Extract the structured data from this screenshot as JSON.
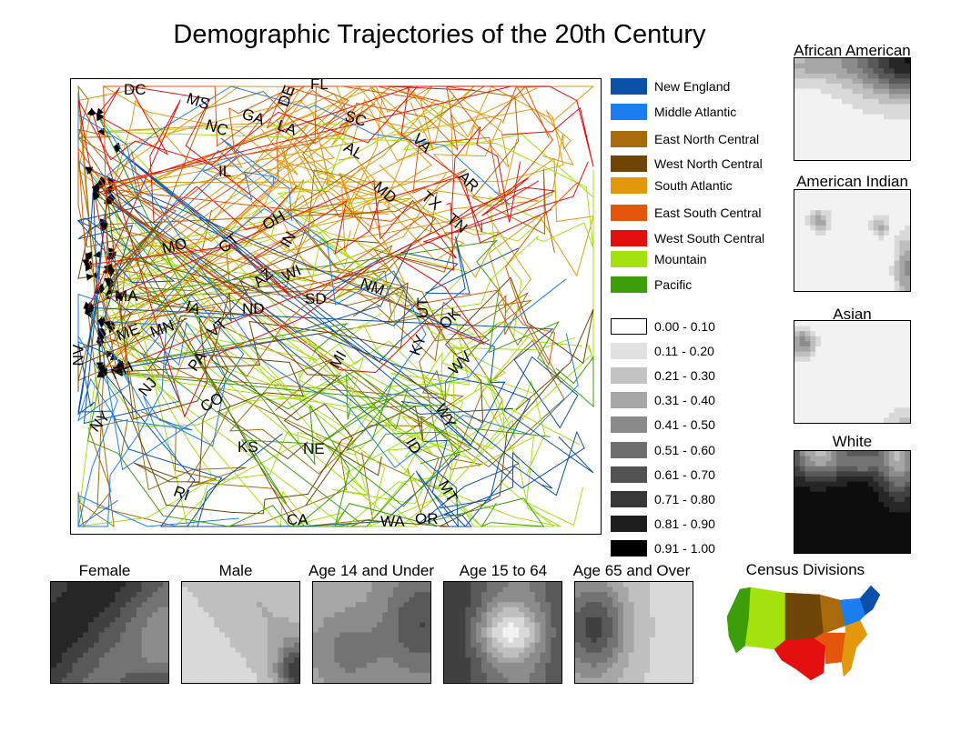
{
  "title": "Demographic Trajectories of the 20th Century",
  "divisions": [
    {
      "name": "New England",
      "color": "#0a4fa8"
    },
    {
      "name": "Middle Atlantic",
      "color": "#1a7ef0"
    },
    {
      "name": "East North Central",
      "color": "#a86a0a"
    },
    {
      "name": "West North Central",
      "color": "#704508"
    },
    {
      "name": "South Atlantic",
      "color": "#e3980c"
    },
    {
      "name": "East South Central",
      "color": "#e4560c"
    },
    {
      "name": "West South Central",
      "color": "#e30e0e"
    },
    {
      "name": "Mountain",
      "color": "#a3e20e"
    },
    {
      "name": "Pacific",
      "color": "#3e9e0a"
    }
  ],
  "scale": [
    {
      "range": "0.00 - 0.10",
      "color": "#ffffff"
    },
    {
      "range": "0.11 - 0.20",
      "color": "#e1e1e1"
    },
    {
      "range": "0.21 - 0.30",
      "color": "#c3c3c3"
    },
    {
      "range": "0.31 - 0.40",
      "color": "#a6a6a6"
    },
    {
      "range": "0.41 - 0.50",
      "color": "#8a8a8a"
    },
    {
      "range": "0.51 - 0.60",
      "color": "#6e6e6e"
    },
    {
      "range": "0.61 - 0.70",
      "color": "#525252"
    },
    {
      "range": "0.71 - 0.80",
      "color": "#383838"
    },
    {
      "range": "0.81 - 0.90",
      "color": "#1e1e1e"
    },
    {
      "range": "0.91 - 1.00",
      "color": "#000000"
    }
  ],
  "states": [
    "DC",
    "FL",
    "MS",
    "DE",
    "GA",
    "LA",
    "NC",
    "SC",
    "VA",
    "AL",
    "AR",
    "IL",
    "MD",
    "TX",
    "TN",
    "OH",
    "CT",
    "MO",
    "IN",
    "AZ",
    "WI",
    "NM",
    "MA",
    "SD",
    "IA",
    "ND",
    "UT",
    "OK",
    "ME",
    "MN",
    "VT",
    "NV",
    "KY",
    "MI",
    "PA",
    "WV",
    "NH",
    "NJ",
    "CO",
    "NY",
    "WY",
    "ID",
    "KS",
    "NE",
    "MT",
    "RI",
    "CA",
    "WA",
    "OR"
  ],
  "panels": {
    "race": [
      "African American",
      "American Indian",
      "Asian",
      "White"
    ],
    "demographic": [
      "Female",
      "Male",
      "Age 14 and Under",
      "Age 15 to 64",
      "Age 65 and Over"
    ]
  },
  "census_map_title": "Census Divisions"
}
